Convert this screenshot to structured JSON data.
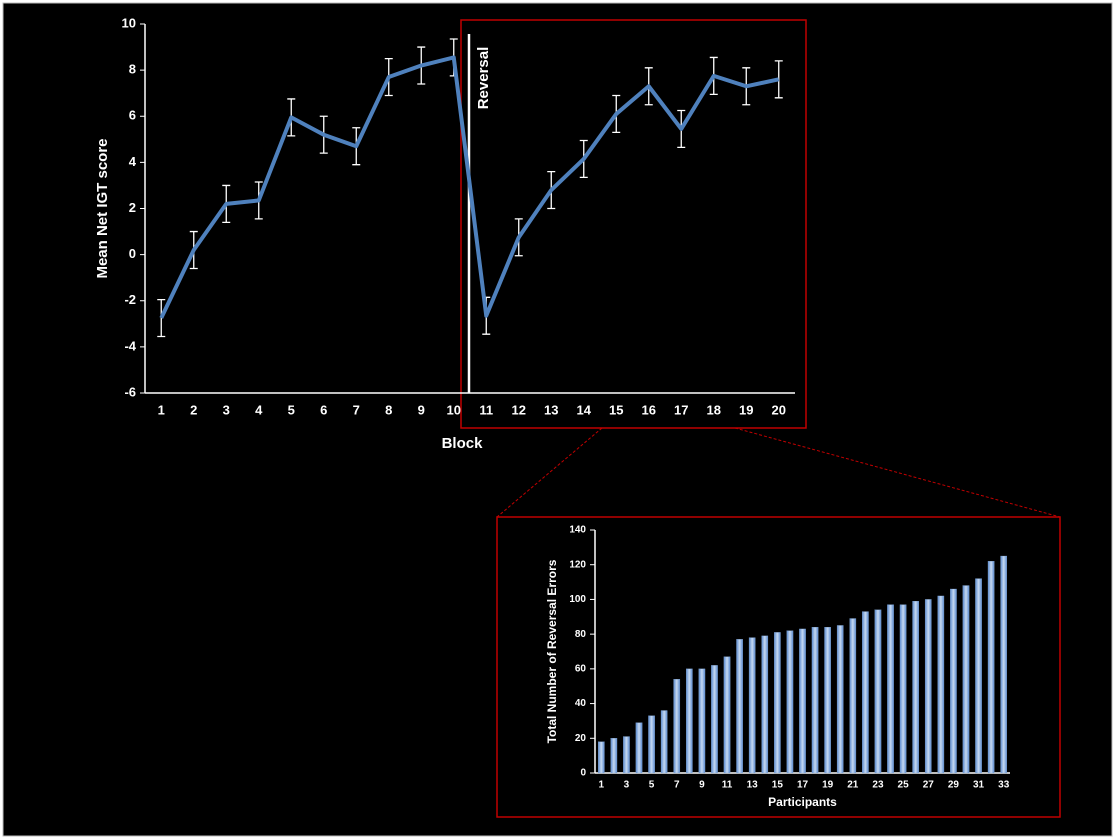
{
  "chart_data": [
    {
      "type": "line",
      "xlabel": "Block",
      "ylabel": "Mean Net IGT score",
      "annotation": "Reversal",
      "categories": [
        "1",
        "2",
        "3",
        "4",
        "5",
        "6",
        "7",
        "8",
        "9",
        "10",
        "11",
        "12",
        "13",
        "14",
        "15",
        "16",
        "17",
        "18",
        "19",
        "20"
      ],
      "series": [
        {
          "color": "#4f81bd",
          "values": [
            -2.75,
            0.2,
            2.2,
            2.35,
            5.95,
            5.2,
            4.7,
            7.7,
            8.2,
            8.55,
            -2.65,
            0.75,
            2.8,
            4.15,
            6.1,
            7.3,
            5.45,
            7.75,
            7.3,
            7.6
          ],
          "errors": [
            0.8,
            0.8,
            0.8,
            0.8,
            0.8,
            0.8,
            0.8,
            0.8,
            0.8,
            0.8,
            0.8,
            0.8,
            0.8,
            0.8,
            0.8,
            0.8,
            0.8,
            0.8,
            0.8,
            0.8
          ]
        }
      ],
      "ylim": [
        -6,
        10
      ],
      "yticks": [
        -6,
        -4,
        -2,
        0,
        2,
        4,
        6,
        8,
        10
      ],
      "grid": false
    },
    {
      "type": "bar",
      "xlabel": "Participants",
      "ylabel": "Total Number of Reversal Errors",
      "categories": [
        "1",
        null,
        "3",
        null,
        "5",
        null,
        "7",
        null,
        "9",
        null,
        "11",
        null,
        "13",
        null,
        "15",
        null,
        "17",
        null,
        "19",
        null,
        "21",
        null,
        "23",
        null,
        "25",
        null,
        "27",
        null,
        "29",
        null,
        "31",
        null,
        "33"
      ],
      "series": [
        {
          "color": "#8db3e2",
          "values": [
            18,
            20,
            21,
            29,
            33,
            36,
            54,
            60,
            60,
            62,
            67,
            77,
            78,
            79,
            81,
            82,
            83,
            84,
            84,
            85,
            89,
            93,
            94,
            97,
            97,
            99,
            100,
            102,
            106,
            108,
            112,
            122,
            125
          ]
        }
      ],
      "ylim": [
        0,
        140
      ],
      "yticks": [
        0,
        20,
        40,
        60,
        80,
        100,
        120,
        140
      ],
      "grid": false
    }
  ]
}
